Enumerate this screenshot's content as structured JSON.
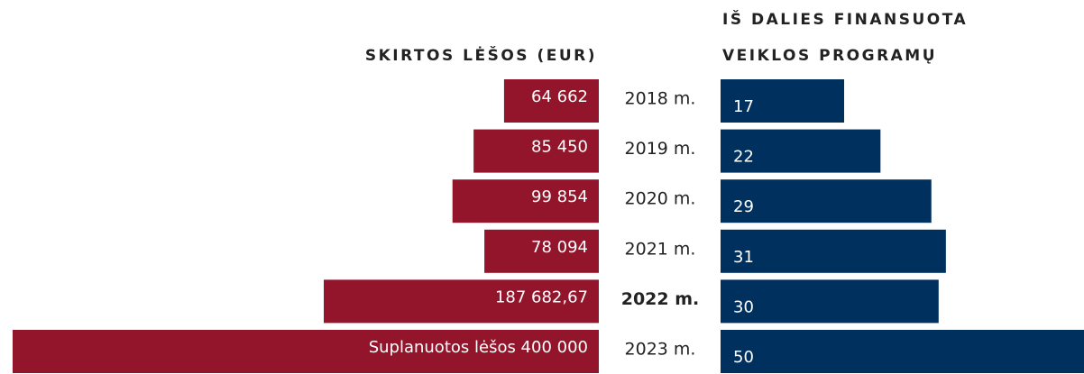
{
  "chart_data": {
    "type": "butterfly-bar",
    "categories": [
      "2018 m.",
      "2019 m.",
      "2020 m.",
      "2021 m.",
      "2022 m.",
      "2023 m."
    ],
    "highlight_category": 4,
    "series": [
      {
        "name": [
          "SKIRTOS LĖŠOS  (EUR)"
        ],
        "color": "#93152b",
        "side": "left",
        "xlim": [
          0,
          400000
        ],
        "values": [
          64662,
          85450,
          99854,
          78094,
          187682.67,
          400000
        ],
        "value_labels": [
          "64 662",
          "85 450",
          "99 854",
          "78 094",
          "187 682,67",
          "Suplanuotos lėšos 400 000"
        ]
      },
      {
        "name": [
          "IŠ DALIES FINANSUOTA",
          "VEIKLOS PROGRAMŲ"
        ],
        "color": "#00305e",
        "side": "right",
        "xlim": [
          0,
          50
        ],
        "values": [
          17,
          22,
          29,
          31,
          30,
          50
        ]
      }
    ]
  }
}
